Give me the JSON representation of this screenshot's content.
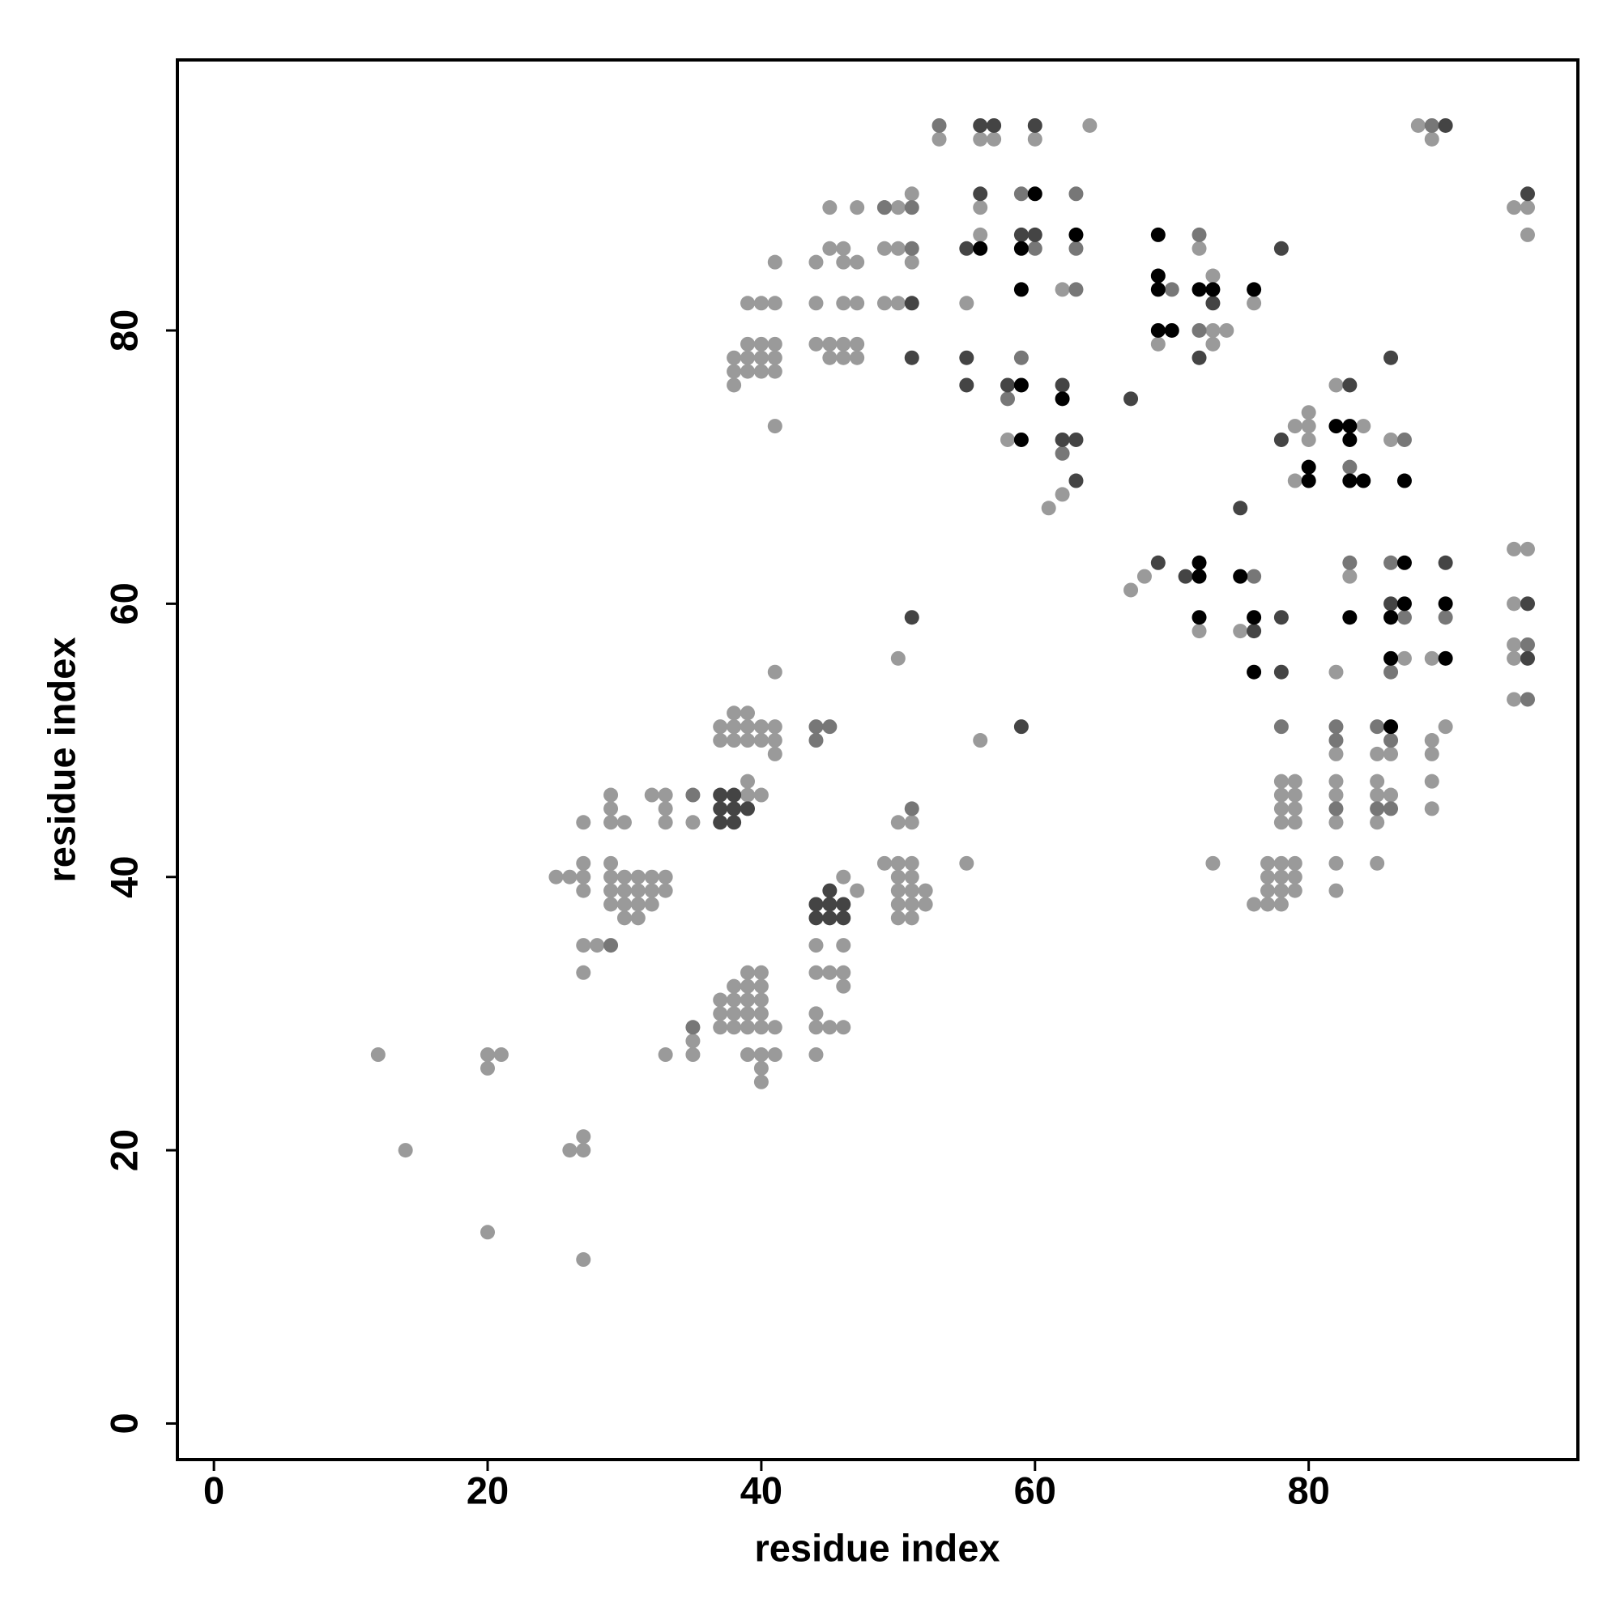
{
  "chart_data": {
    "type": "scatter",
    "xlabel": "residue index",
    "ylabel": "residue index",
    "xlim": [
      -2.67,
      99.67
    ],
    "ylim": [
      -2.64,
      99.8
    ],
    "xticks": [
      0,
      20,
      40,
      60,
      80
    ],
    "yticks": [
      0,
      20,
      40,
      60,
      80
    ],
    "series": [
      {
        "color": "#9a9a9a",
        "x": [
          12,
          14,
          20,
          20,
          20,
          21,
          26,
          27,
          27,
          27,
          25,
          26,
          27,
          27,
          27,
          27,
          27,
          27,
          28,
          29,
          29,
          29,
          29,
          29,
          29,
          29,
          30,
          30,
          30,
          30,
          30,
          31,
          31,
          31,
          31,
          32,
          32,
          32,
          32,
          33,
          33,
          33,
          33,
          33,
          33,
          35,
          35,
          35,
          37,
          37,
          37,
          38,
          38,
          38,
          38,
          39,
          39,
          39,
          39,
          39,
          40,
          40,
          40,
          40,
          40,
          40,
          40,
          40,
          39,
          41,
          41,
          37,
          37,
          38,
          38,
          38,
          39,
          39,
          39,
          40,
          40,
          41,
          41,
          41,
          41,
          39,
          39,
          40,
          44,
          44,
          44,
          44,
          44,
          45,
          45,
          46,
          46,
          46,
          46,
          46,
          47,
          49,
          50,
          50,
          50,
          50,
          50,
          50,
          51,
          51,
          51,
          51,
          51,
          51,
          52,
          52,
          50,
          55,
          56,
          38,
          38,
          38,
          39,
          39,
          39,
          39,
          40,
          40,
          40,
          40,
          41,
          41,
          41,
          41,
          41,
          41,
          44,
          44,
          44,
          45,
          45,
          45,
          45,
          46,
          46,
          46,
          46,
          46,
          47,
          47,
          47,
          47,
          47,
          49,
          49,
          49,
          50,
          50,
          50,
          51,
          51,
          53,
          56,
          57,
          60,
          64,
          56,
          56,
          55,
          62,
          58,
          62,
          61,
          69,
          72,
          73,
          73,
          74,
          73,
          76,
          79,
          79,
          80,
          80,
          80,
          82,
          84,
          86,
          67,
          68,
          72,
          75,
          83,
          82,
          87,
          89,
          95,
          96,
          95,
          95,
          95,
          95,
          95,
          96,
          96,
          88,
          89,
          73,
          76,
          77,
          77,
          77,
          77,
          78,
          78,
          78,
          78,
          79,
          79,
          79,
          78,
          78,
          78,
          78,
          79,
          79,
          79,
          79,
          82,
          82,
          82,
          82,
          82,
          82,
          85,
          85,
          85,
          85,
          85,
          86,
          86,
          89,
          89,
          89,
          89,
          90
        ],
        "y": [
          27,
          20,
          14,
          26,
          27,
          27,
          20,
          20,
          21,
          12,
          40,
          40,
          40,
          41,
          39,
          44,
          35,
          33,
          35,
          46,
          45,
          44,
          41,
          40,
          39,
          38,
          44,
          40,
          39,
          38,
          37,
          40,
          39,
          38,
          37,
          46,
          40,
          39,
          38,
          46,
          45,
          44,
          40,
          39,
          27,
          44,
          28,
          27,
          29,
          30,
          31,
          29,
          30,
          31,
          32,
          29,
          30,
          31,
          32,
          33,
          29,
          30,
          31,
          32,
          33,
          27,
          26,
          25,
          27,
          27,
          29,
          50,
          51,
          50,
          51,
          52,
          50,
          51,
          52,
          50,
          51,
          50,
          51,
          49,
          55,
          47,
          46,
          46,
          27,
          29,
          30,
          33,
          35,
          29,
          33,
          29,
          32,
          33,
          35,
          40,
          39,
          41,
          37,
          38,
          39,
          40,
          41,
          44,
          37,
          38,
          39,
          40,
          41,
          44,
          38,
          39,
          56,
          41,
          50,
          76,
          77,
          78,
          77,
          78,
          79,
          82,
          77,
          78,
          79,
          82,
          77,
          78,
          79,
          82,
          85,
          73,
          79,
          82,
          85,
          78,
          79,
          86,
          89,
          78,
          79,
          82,
          85,
          86,
          78,
          79,
          82,
          85,
          89,
          82,
          86,
          89,
          82,
          86,
          89,
          85,
          90,
          94,
          94,
          94,
          94,
          95,
          89,
          87,
          82,
          83,
          72,
          68,
          67,
          79,
          86,
          84,
          80,
          80,
          79,
          82,
          73,
          69,
          74,
          73,
          72,
          76,
          73,
          72,
          61,
          62,
          58,
          58,
          62,
          55,
          56,
          56,
          64,
          64,
          60,
          57,
          56,
          53,
          89,
          89,
          87,
          95,
          94,
          41,
          38,
          38,
          39,
          40,
          41,
          38,
          39,
          40,
          41,
          39,
          40,
          41,
          44,
          45,
          46,
          47,
          44,
          45,
          46,
          47,
          39,
          41,
          44,
          46,
          47,
          49,
          41,
          44,
          46,
          47,
          49,
          46,
          49,
          45,
          47,
          49,
          50,
          51
        ]
      },
      {
        "color": "#777777",
        "x": [
          29,
          35,
          35,
          44,
          44,
          45,
          51,
          51,
          51,
          49,
          53,
          59,
          60,
          63,
          63,
          63,
          58,
          59,
          62,
          70,
          72,
          72,
          76,
          83,
          87,
          78,
          83,
          86,
          87,
          86,
          90,
          96,
          96,
          89,
          82,
          82,
          82,
          85,
          85,
          86,
          86
        ],
        "y": [
          35,
          46,
          29,
          50,
          51,
          51,
          45,
          86,
          89,
          89,
          95,
          90,
          86,
          90,
          86,
          83,
          75,
          78,
          71,
          83,
          87,
          80,
          62,
          70,
          72,
          51,
          63,
          63,
          59,
          55,
          59,
          57,
          53,
          95,
          45,
          50,
          51,
          45,
          51,
          45,
          50
        ]
      },
      {
        "color": "#444444",
        "x": [
          37,
          37,
          37,
          38,
          38,
          38,
          39,
          44,
          44,
          45,
          45,
          45,
          46,
          46,
          51,
          59,
          51,
          51,
          56,
          57,
          60,
          56,
          59,
          60,
          55,
          55,
          55,
          58,
          62,
          62,
          63,
          63,
          67,
          73,
          72,
          78,
          78,
          83,
          86,
          75,
          69,
          71,
          76,
          78,
          78,
          86,
          90,
          96,
          96,
          96,
          90
        ],
        "y": [
          44,
          45,
          46,
          44,
          45,
          46,
          45,
          37,
          38,
          37,
          38,
          39,
          37,
          38,
          59,
          51,
          82,
          78,
          95,
          95,
          95,
          90,
          87,
          87,
          86,
          78,
          76,
          76,
          76,
          72,
          72,
          69,
          75,
          82,
          78,
          86,
          72,
          76,
          78,
          67,
          63,
          62,
          58,
          59,
          55,
          60,
          63,
          60,
          56,
          90,
          95
        ]
      },
      {
        "color": "#000000",
        "x": [
          56,
          60,
          59,
          59,
          63,
          59,
          59,
          62,
          69,
          69,
          69,
          69,
          70,
          72,
          73,
          76,
          80,
          80,
          82,
          83,
          83,
          83,
          84,
          87,
          72,
          72,
          72,
          75,
          76,
          76,
          83,
          87,
          87,
          86,
          86,
          86,
          90,
          90
        ],
        "y": [
          86,
          90,
          86,
          83,
          87,
          76,
          72,
          75,
          87,
          84,
          83,
          80,
          80,
          83,
          83,
          83,
          70,
          69,
          73,
          73,
          72,
          69,
          69,
          69,
          63,
          62,
          59,
          62,
          59,
          55,
          59,
          63,
          60,
          59,
          56,
          51,
          60,
          56
        ]
      }
    ]
  }
}
